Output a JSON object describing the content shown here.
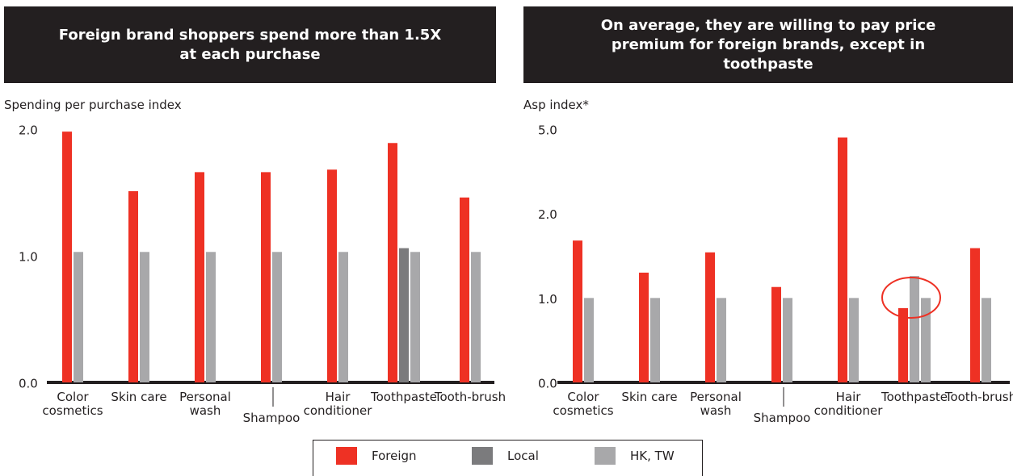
{
  "chart_data": [
    {
      "type": "bar",
      "title": "Foreign brand shoppers spend more than 1.5X at each purchase",
      "y_label": "Spending per purchase index",
      "categories": [
        "Color cosmetics",
        "Skin care",
        "Personal wash",
        "Shampoo",
        "Hair conditioner",
        "Toothpaste",
        "Tooth-brush"
      ],
      "series": [
        {
          "name": "Foreign",
          "color": "#ee3124",
          "values": [
            1.98,
            1.51,
            1.66,
            1.66,
            1.68,
            1.89,
            1.46
          ]
        },
        {
          "name": "Local",
          "color": "#7b7b7d",
          "values": [
            null,
            null,
            null,
            null,
            null,
            1.06,
            null
          ]
        },
        {
          "name": "HK, TW",
          "color": "#a8a8aa",
          "values": [
            1.03,
            1.03,
            1.03,
            1.03,
            1.03,
            1.03,
            1.03
          ]
        }
      ],
      "ylim": [
        0,
        2
      ],
      "yticks": [
        {
          "value": 0,
          "label": "0.0"
        },
        {
          "value": 1,
          "label": "1.0"
        },
        {
          "value": 2,
          "label": "2.0"
        }
      ]
    },
    {
      "type": "bar",
      "title": "On average, they are willing to pay price premium for foreign brands, except in toothpaste",
      "y_label": "Asp index*",
      "categories": [
        "Color cosmetics",
        "Skin care",
        "Personal wash",
        "Shampoo",
        "Hair conditioner",
        "Toothpaste",
        "Tooth-brush"
      ],
      "series": [
        {
          "name": "Foreign",
          "color": "#ee3124",
          "values": [
            1.68,
            1.3,
            1.54,
            1.13,
            4.7,
            0.88,
            1.59
          ]
        },
        {
          "name": "Local",
          "color": "#a8a8aa",
          "values": [
            null,
            null,
            null,
            null,
            null,
            1.26,
            null
          ]
        },
        {
          "name": "HK, TW",
          "color": "#a8a8aa",
          "values": [
            1.0,
            1.0,
            1.0,
            1.0,
            1.0,
            1.0,
            1.0
          ]
        }
      ],
      "ylim": [
        0,
        5
      ],
      "yticks": [
        {
          "value": 0,
          "label": "0.0"
        },
        {
          "value": 1,
          "label": "1.0"
        },
        {
          "value": 2,
          "label": "2.0"
        },
        {
          "value": 5,
          "label": "5.0"
        }
      ]
    }
  ]
}
